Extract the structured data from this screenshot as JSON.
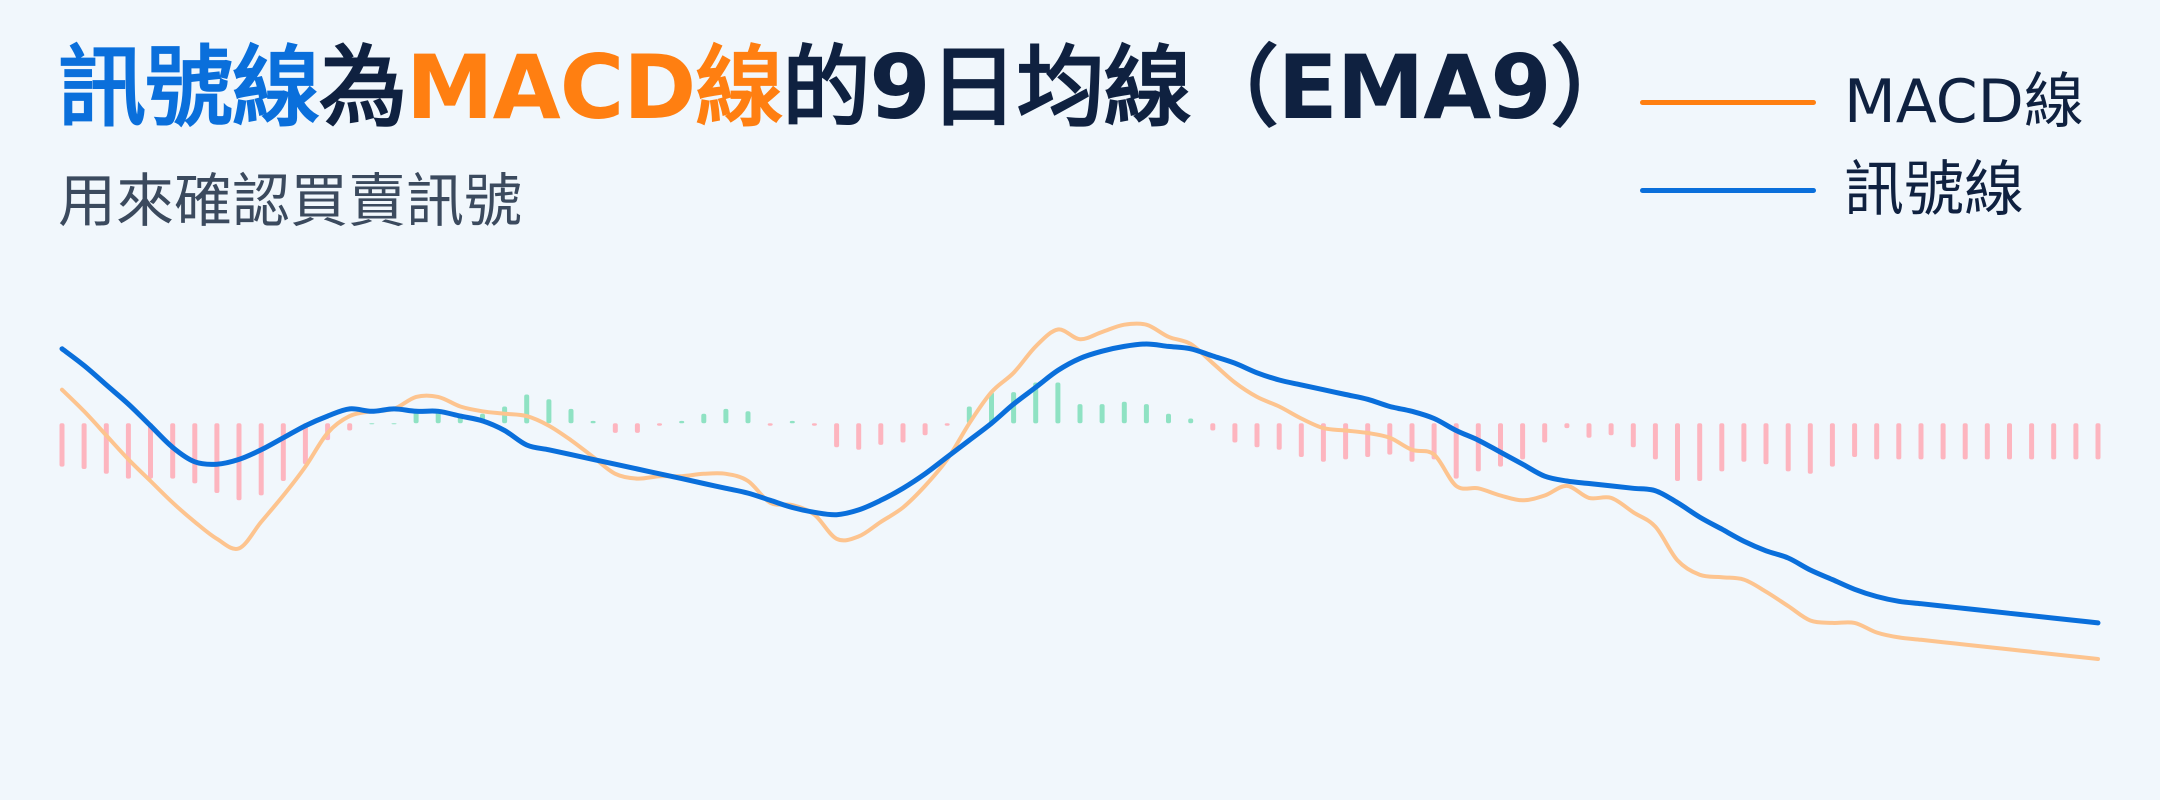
{
  "title": {
    "part1": "訊號線",
    "part2": "為",
    "part3": "MACD線",
    "part4": "的9日均線（EMA9）"
  },
  "subtitle": "用來確認買賣訊號",
  "colors": {
    "background": "#f1f7fc",
    "signal": "#0a6fdb",
    "macd": "#ff7f11",
    "macd_line_faded": "#fdc48f",
    "hist_positive": "#8fe2c3",
    "hist_negative": "#fdb5bf",
    "title_dark": "#0f2140",
    "subtitle": "#3b4a5e"
  },
  "legend": [
    {
      "label": "MACD線",
      "color": "#ff7f11"
    },
    {
      "label": "訊號線",
      "color": "#0a6fdb"
    }
  ],
  "chart_data": {
    "type": "line",
    "x": [
      0,
      1,
      2,
      3,
      4,
      5,
      6,
      7,
      8,
      9,
      10,
      11,
      12,
      13,
      14,
      15,
      16,
      17,
      18,
      19,
      20,
      21,
      22,
      23,
      24,
      25,
      26,
      27,
      28,
      29,
      30,
      31,
      32,
      33,
      34,
      35,
      36,
      37,
      38,
      39,
      40,
      41,
      42,
      43,
      44,
      45,
      46,
      47,
      48,
      49,
      50,
      51,
      52,
      53,
      54,
      55,
      56,
      57,
      58,
      59,
      60,
      61,
      62,
      63,
      64,
      65,
      66,
      67,
      68,
      69,
      70,
      71,
      72,
      73,
      74,
      75,
      76,
      77,
      78,
      79,
      80,
      81,
      82,
      83,
      84,
      85,
      86,
      87,
      88,
      89,
      90,
      91,
      92
    ],
    "ylim": [
      -1.4,
      0.7
    ],
    "series": [
      {
        "name": "MACD線",
        "values": [
          0.14,
          0.05,
          -0.05,
          -0.15,
          -0.24,
          -0.33,
          -0.41,
          -0.48,
          -0.52,
          -0.41,
          -0.3,
          -0.18,
          -0.04,
          0.03,
          0.05,
          0.06,
          0.11,
          0.11,
          0.07,
          0.05,
          0.04,
          0.03,
          -0.01,
          -0.07,
          -0.14,
          -0.21,
          -0.23,
          -0.22,
          -0.22,
          -0.21,
          -0.21,
          -0.24,
          -0.33,
          -0.34,
          -0.38,
          -0.48,
          -0.47,
          -0.41,
          -0.35,
          -0.26,
          -0.15,
          0.0,
          0.13,
          0.21,
          0.32,
          0.39,
          0.35,
          0.38,
          0.41,
          0.41,
          0.36,
          0.33,
          0.25,
          0.17,
          0.11,
          0.07,
          0.02,
          -0.02,
          -0.03,
          -0.04,
          -0.06,
          -0.11,
          -0.13,
          -0.26,
          -0.27,
          -0.3,
          -0.32,
          -0.3,
          -0.26,
          -0.31,
          -0.31,
          -0.37,
          -0.43,
          -0.57,
          -0.63,
          -0.64,
          -0.65,
          -0.7,
          -0.76,
          -0.82,
          -0.83,
          -0.83,
          -0.87,
          -0.89,
          -0.9,
          -0.91,
          -0.92,
          -0.93,
          -0.94,
          -0.95,
          -0.96,
          -0.97,
          -0.98
        ]
      },
      {
        "name": "訊號線",
        "values": [
          0.31,
          0.24,
          0.16,
          0.08,
          -0.01,
          -0.1,
          -0.16,
          -0.17,
          -0.15,
          -0.11,
          -0.06,
          -0.01,
          0.03,
          0.06,
          0.05,
          0.06,
          0.05,
          0.05,
          0.03,
          0.01,
          -0.03,
          -0.09,
          -0.11,
          -0.13,
          -0.15,
          -0.17,
          -0.19,
          -0.21,
          -0.23,
          -0.25,
          -0.27,
          -0.29,
          -0.32,
          -0.35,
          -0.37,
          -0.38,
          -0.36,
          -0.32,
          -0.27,
          -0.21,
          -0.14,
          -0.07,
          0.0,
          0.08,
          0.15,
          0.22,
          0.27,
          0.3,
          0.32,
          0.33,
          0.32,
          0.31,
          0.28,
          0.25,
          0.21,
          0.18,
          0.16,
          0.14,
          0.12,
          0.1,
          0.07,
          0.05,
          0.02,
          -0.03,
          -0.07,
          -0.12,
          -0.17,
          -0.22,
          -0.24,
          -0.25,
          -0.26,
          -0.27,
          -0.28,
          -0.33,
          -0.39,
          -0.44,
          -0.49,
          -0.53,
          -0.56,
          -0.61,
          -0.65,
          -0.69,
          -0.72,
          -0.74,
          -0.75,
          -0.76,
          -0.77,
          -0.78,
          -0.79,
          -0.8,
          -0.81,
          -0.82,
          -0.83
        ]
      }
    ],
    "histogram": [
      -0.18,
      -0.19,
      -0.21,
      -0.23,
      -0.23,
      -0.23,
      -0.25,
      -0.29,
      -0.32,
      -0.3,
      -0.24,
      -0.17,
      -0.07,
      -0.03,
      0.0,
      0.0,
      0.06,
      0.06,
      0.04,
      0.04,
      0.07,
      0.12,
      0.1,
      0.06,
      0.01,
      -0.04,
      -0.04,
      -0.01,
      0.01,
      0.04,
      0.06,
      0.05,
      -0.01,
      0.01,
      -0.01,
      -0.1,
      -0.11,
      -0.09,
      -0.08,
      -0.05,
      -0.01,
      0.07,
      0.13,
      0.13,
      0.17,
      0.17,
      0.08,
      0.08,
      0.09,
      0.08,
      0.04,
      0.02,
      -0.03,
      -0.08,
      -0.1,
      -0.11,
      -0.14,
      -0.16,
      -0.15,
      -0.14,
      -0.13,
      -0.16,
      -0.15,
      -0.23,
      -0.2,
      -0.18,
      -0.15,
      -0.08,
      -0.02,
      -0.06,
      -0.05,
      -0.1,
      -0.15,
      -0.24,
      -0.24,
      -0.2,
      -0.16,
      -0.17,
      -0.2,
      -0.21,
      -0.18,
      -0.14,
      -0.15,
      -0.15,
      -0.15,
      -0.15,
      -0.15,
      -0.15,
      -0.15,
      -0.15,
      -0.15,
      -0.15,
      -0.15
    ],
    "title": "訊號線為MACD線的9日均線（EMA9）",
    "subtitle": "用來確認買賣訊號",
    "legend_position": "top-right",
    "grid": false
  }
}
